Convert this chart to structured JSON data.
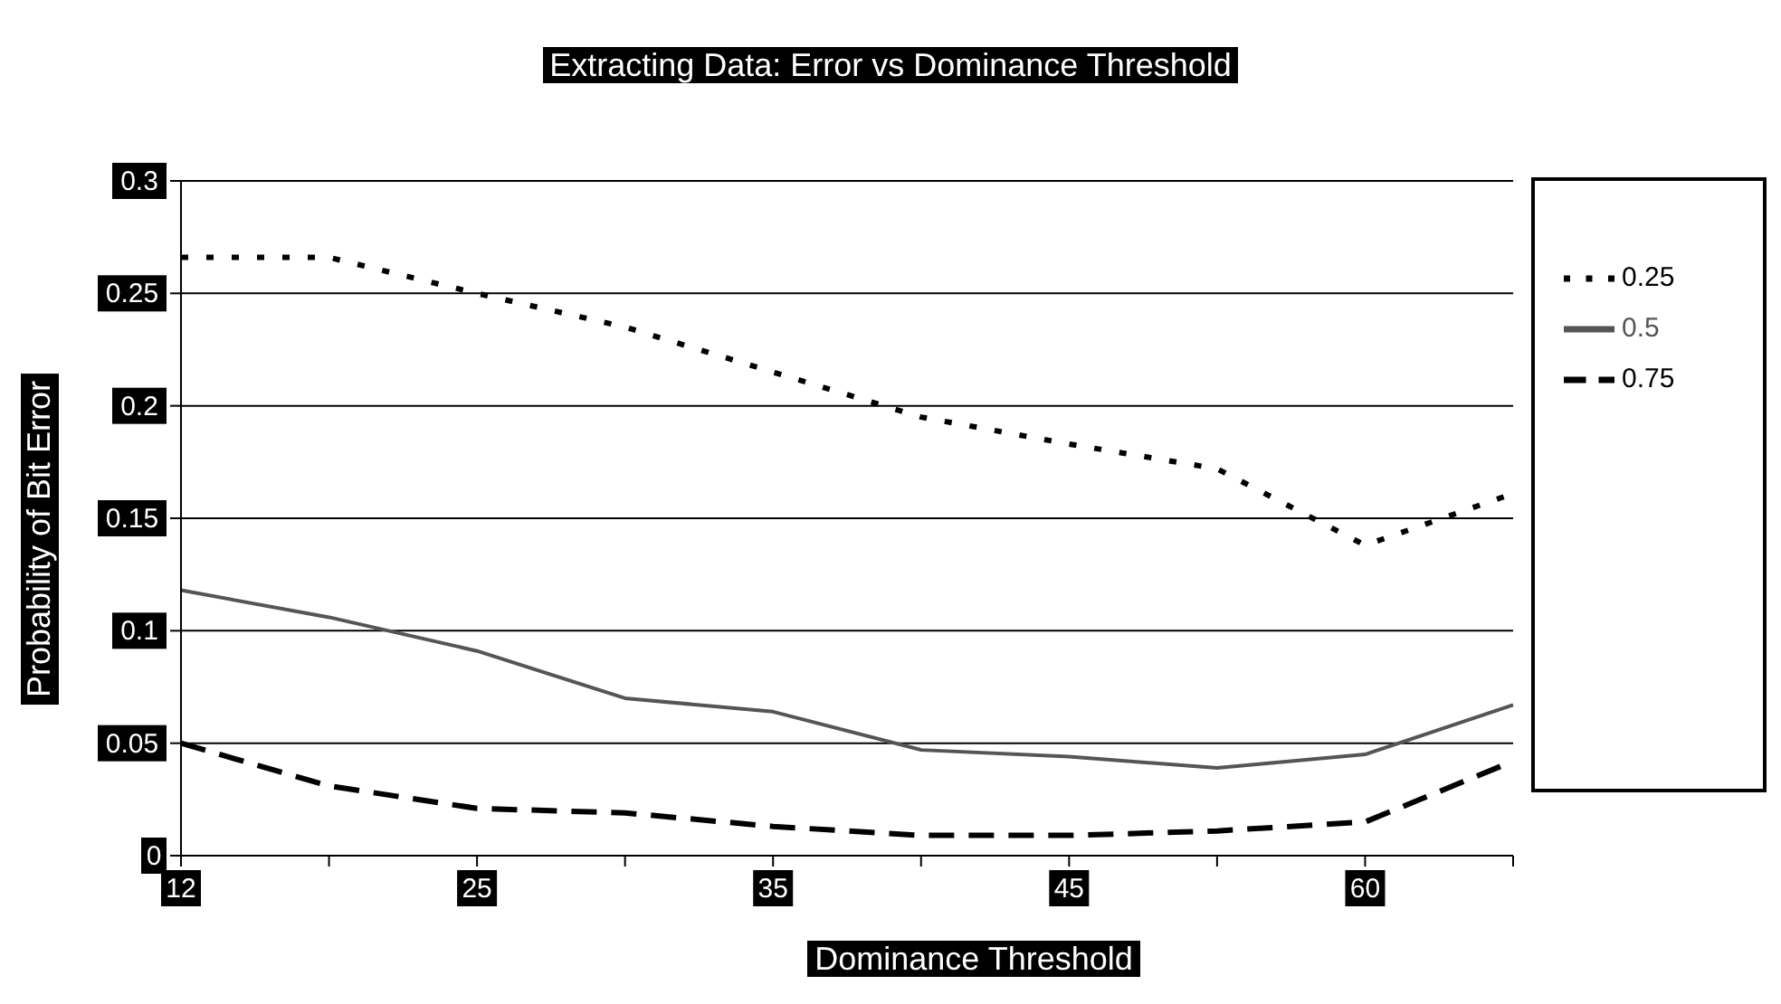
{
  "chart_data": {
    "type": "line",
    "title": "Extracting Data: Error vs Dominance Threshold",
    "xlabel": "Dominance Threshold",
    "ylabel": "Probability of Bit Error",
    "categories": [
      "12",
      null,
      "25",
      null,
      "35",
      null,
      "45",
      null,
      "60",
      null
    ],
    "series": [
      {
        "name": "0.25",
        "color": "#000000",
        "line_style": "dotted",
        "values": [
          0.266,
          0.266,
          0.25,
          0.235,
          0.215,
          0.195,
          0.183,
          0.172,
          0.138,
          0.161
        ]
      },
      {
        "name": "0.5",
        "color": "#555555",
        "line_style": "solid",
        "values": [
          0.118,
          0.106,
          0.091,
          0.07,
          0.064,
          0.047,
          0.044,
          0.039,
          0.045,
          0.067
        ]
      },
      {
        "name": "0.75",
        "color": "#000000",
        "line_style": "dashed",
        "values": [
          0.05,
          0.031,
          0.021,
          0.019,
          0.013,
          0.009,
          0.009,
          0.011,
          0.015,
          0.042
        ]
      }
    ],
    "ylim": [
      0,
      0.3
    ],
    "yticks": [
      0,
      0.05,
      0.1,
      0.15,
      0.2,
      0.25,
      0.3
    ],
    "grid": "y",
    "legend": "right",
    "marker": "none"
  }
}
